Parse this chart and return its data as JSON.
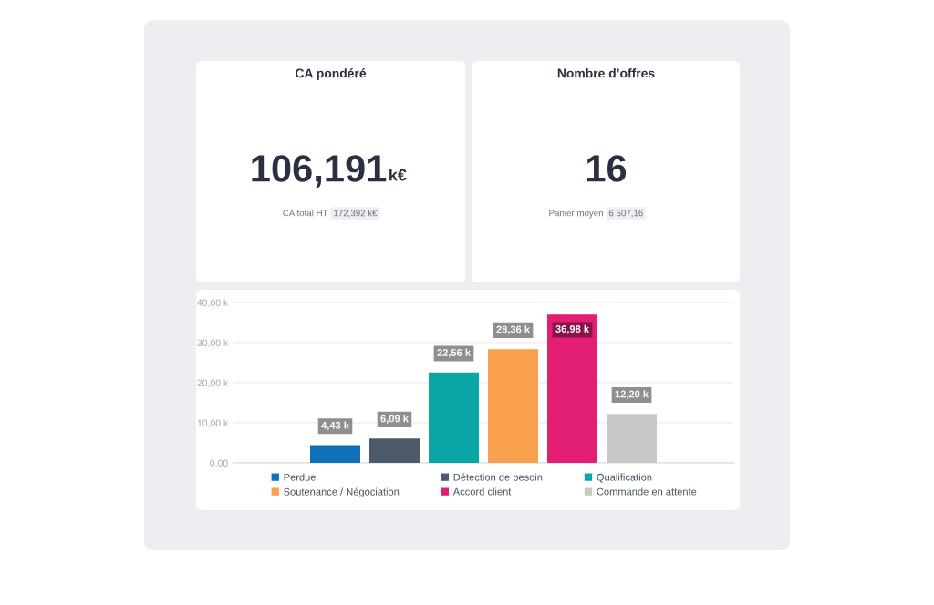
{
  "chart_data": [
    {
      "type": "other",
      "title": "CA pondéré",
      "annotations": [
        "106,191",
        "k€",
        "CA total HT",
        "172,392 k€"
      ]
    },
    {
      "type": "other",
      "title": "Nombre d’offres",
      "annotations": [
        "16",
        "Panier moyen",
        "6 507,16"
      ]
    },
    {
      "type": "bar",
      "categories": [
        null
      ],
      "series": [
        {
          "name": "Perdue",
          "color": "#1070b8",
          "values": [
            4.43
          ],
          "value_labels": [
            "4,43 k"
          ]
        },
        {
          "name": "Détection de besoin",
          "color": "#4d5a69",
          "values": [
            6.09
          ],
          "value_labels": [
            "6,09 k"
          ]
        },
        {
          "name": "Qualification",
          "color": "#0aa5a5",
          "values": [
            22.56
          ],
          "value_labels": [
            "22,56 k"
          ]
        },
        {
          "name": "Soutenance / Négociation",
          "color": "#f9a04e",
          "values": [
            28.36
          ],
          "value_labels": [
            "28,36 k"
          ]
        },
        {
          "name": "Accord client",
          "color": "#e11d74",
          "values": [
            36.98
          ],
          "value_labels": [
            "36,98 k"
          ]
        },
        {
          "name": "Commande en attente",
          "color": "#c8c8c6",
          "values": [
            12.2
          ],
          "value_labels": [
            "12,20 k"
          ]
        }
      ],
      "ylim": [
        0,
        40
      ],
      "yticks": [
        {
          "value": 0,
          "label": "0,00"
        },
        {
          "value": 10,
          "label": "10,00 k"
        },
        {
          "value": 20,
          "label": "20,00 k"
        },
        {
          "value": 30,
          "label": "30,00 k"
        },
        {
          "value": 40,
          "label": "40,00 k"
        }
      ],
      "grid": "y",
      "legend": "bottom"
    }
  ]
}
